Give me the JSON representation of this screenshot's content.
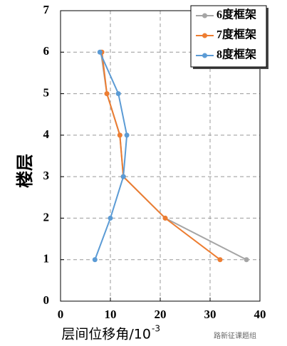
{
  "chart_data": {
    "type": "line",
    "xlabel": "层间位移角/10",
    "xlabel_sup": "-3",
    "ylabel": "楼层",
    "xlim": [
      0,
      40
    ],
    "xticks": [
      0,
      10,
      20,
      30,
      40
    ],
    "ylim": [
      0,
      7
    ],
    "yticks": [
      0,
      1,
      2,
      3,
      4,
      5,
      6,
      7
    ],
    "grid": true,
    "legend": "upper right",
    "series": [
      {
        "name": "6度框架",
        "color": "#a5a5a5",
        "x": [
          37.3,
          21,
          12.6,
          11.9,
          9.3,
          8.1
        ],
        "y": [
          1,
          2,
          3,
          4,
          5,
          6
        ]
      },
      {
        "name": "7度框架",
        "color": "#ed7d31",
        "x": [
          32,
          21,
          12.6,
          11.9,
          9.3,
          8.3
        ],
        "y": [
          1,
          2,
          3,
          4,
          5,
          6
        ]
      },
      {
        "name": "8度框架",
        "color": "#5b9bd5",
        "x": [
          6.9,
          10,
          12.6,
          13.3,
          11.6,
          7.9
        ],
        "y": [
          1,
          2,
          3,
          4,
          5,
          6
        ]
      }
    ],
    "watermark": "路新征课题组"
  }
}
